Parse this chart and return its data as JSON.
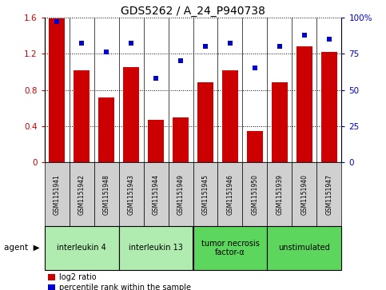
{
  "title": "GDS5262 / A_24_P940738",
  "samples": [
    "GSM1151941",
    "GSM1151942",
    "GSM1151948",
    "GSM1151943",
    "GSM1151944",
    "GSM1151949",
    "GSM1151945",
    "GSM1151946",
    "GSM1151950",
    "GSM1151939",
    "GSM1151940",
    "GSM1151947"
  ],
  "log2_ratio": [
    1.59,
    1.02,
    0.72,
    1.05,
    0.47,
    0.5,
    0.88,
    1.02,
    0.35,
    0.88,
    1.28,
    1.22
  ],
  "percentile": [
    97,
    82,
    76,
    82,
    58,
    70,
    80,
    82,
    65,
    80,
    88,
    85
  ],
  "agents": [
    {
      "label": "interleukin 4",
      "indices": [
        0,
        1,
        2
      ],
      "color": "#b0ecb0"
    },
    {
      "label": "interleukin 13",
      "indices": [
        3,
        4,
        5
      ],
      "color": "#b0ecb0"
    },
    {
      "label": "tumor necrosis\nfactor-α",
      "indices": [
        6,
        7,
        8
      ],
      "color": "#5cd65c"
    },
    {
      "label": "unstimulated",
      "indices": [
        9,
        10,
        11
      ],
      "color": "#5cd65c"
    }
  ],
  "bar_color": "#cc0000",
  "dot_color": "#0000cc",
  "ylim_left": [
    0,
    1.6
  ],
  "ylim_right": [
    0,
    100
  ],
  "yticks_left": [
    0,
    0.4,
    0.8,
    1.2,
    1.6
  ],
  "ytick_labels_left": [
    "0",
    "0.4",
    "0.8",
    "1.2",
    "1.6"
  ],
  "yticks_right": [
    0,
    25,
    50,
    75,
    100
  ],
  "ytick_labels_right": [
    "0",
    "25",
    "50",
    "75",
    "100%"
  ],
  "sample_bg_color": "#d0d0d0",
  "legend_items": [
    {
      "label": "log2 ratio",
      "color": "#cc0000"
    },
    {
      "label": "percentile rank within the sample",
      "color": "#0000cc"
    }
  ]
}
